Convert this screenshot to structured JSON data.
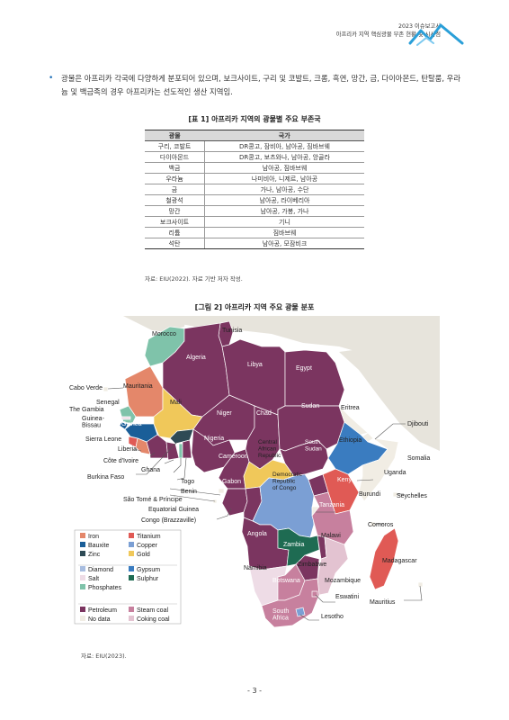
{
  "header": {
    "line1": "2023 이슈보고서",
    "line2": "아프리카 지역 핵심광물 부존 현황 및 시사점"
  },
  "bullet": {
    "text": "광물은 아프리카 각국에 다양하게 분포되어 있으며, 보크사이트, 구리 및 코발트, 크롬, 흑연, 망간, 금, 다이아몬드, 탄탈룸, 우라늄 및 백금족의 경우 아프리카는 선도적인 생산 지역임."
  },
  "table": {
    "title": "[표 1] 아프리카 지역의 광물별 주요 부존국",
    "headers": [
      "광물",
      "국가"
    ],
    "rows": [
      [
        "구리, 코발트",
        "DR콩고, 잠비아, 남아공, 짐바브웨"
      ],
      [
        "다이아몬드",
        "DR콩고, 보츠와나, 남아공, 앙골라"
      ],
      [
        "백금",
        "남아공, 짐바브웨"
      ],
      [
        "우라늄",
        "나미비아, 니제르, 남아공"
      ],
      [
        "금",
        "가나, 남아공, 수단"
      ],
      [
        "철광석",
        "남아공, 라이베리아"
      ],
      [
        "망간",
        "남아공, 가봉, 가나"
      ],
      [
        "보크사이트",
        "기니"
      ],
      [
        "리튬",
        "짐바브웨"
      ],
      [
        "석탄",
        "남아공, 모잠비크"
      ]
    ],
    "source": "자료: EIU(2022). 자료 기반 저자 작성."
  },
  "figure": {
    "title": "[그림 2] 아프리카 지역 주요 광물 분포",
    "source": "자료: EIU(2023).",
    "colors": {
      "Petroleum": "#7b3560",
      "Gold": "#f0c85a",
      "Iron": "#e4876a",
      "Copper": "#7b9fd4",
      "Diamond": "#a8bde0",
      "Phosphates": "#7fc3aa",
      "Sulphur": "#1e6b52",
      "Steam coal": "#c7809e",
      "Coking coal": "#e3c3d1",
      "Salt": "#eedce6",
      "Titanium": "#e05a55",
      "Bauxite": "#1a5e98",
      "Zinc": "#2e4a55",
      "Gypsum": "#3a7cc0",
      "No data": "#f1ede4",
      "Sea": "#ffffff",
      "Land": "#e7e4dc"
    },
    "countries": {
      "morocco": "Morocco",
      "tunisia": "Tunisia",
      "algeria": "Algeria",
      "libya": "Libya",
      "egypt": "Egypt",
      "mauritania": "Mauritania",
      "mali": "Mali",
      "niger": "Niger",
      "chad": "Chad",
      "sudan": "Sudan",
      "eritrea": "Eritrea",
      "djibouti": "Djibouti",
      "ethiopia": "Ethiopia",
      "somalia": "Somalia",
      "cabo_verde": "Cabo Verde",
      "senegal": "Senegal",
      "gambia": "The Gambia",
      "guinea_bissau": "Guinea-\nBissau",
      "guinea": "Guinea",
      "sierra_leone": "Sierra Leone",
      "liberia": "Liberia",
      "cote": "Côte d'Ivoire",
      "ghana": "Ghana",
      "burkina": "Burkina Faso",
      "togo": "Togo",
      "benin": "Benin",
      "nigeria": "Nigeria",
      "cameroon": "Cameroon",
      "car": "Central\nAfrican\nRepublic",
      "south_sudan": "South\nSudan",
      "uganda": "Uganda",
      "kenya": "Kenya",
      "burundi": "Burundi",
      "seychelles": "Seychelles",
      "stp": "São Tomé & Príncipe",
      "eq_guinea": "Equatorial Guinea",
      "congo": "Congo (Brazzaville)",
      "gabon": "Gabon",
      "drc": "Democratic\nRepublic\nof Congo",
      "tanzania": "Tanzania",
      "comoros": "Comoros",
      "angola": "Angola",
      "zambia": "Zambia",
      "malawi": "Malawi",
      "madagascar": "Madagascar",
      "namibia": "Namibia",
      "zimbabwe": "Zimbabwe",
      "mozambique": "Mozambique",
      "botswana": "Botswana",
      "eswatini": "Eswatini",
      "mauritius": "Mauritius",
      "south_africa": "South\nAfrica",
      "lesotho": "Lesotho"
    },
    "legend": [
      [
        "Iron",
        "Titanium"
      ],
      [
        "Bauxite",
        "Copper"
      ],
      [
        "Zinc",
        "Gold"
      ],
      [
        "Diamond",
        "Gypsum"
      ],
      [
        "Salt",
        "Sulphur"
      ],
      [
        "Phosphates",
        ""
      ],
      [
        "Petroleum",
        "Steam coal"
      ],
      [
        "No data",
        "Coking coal"
      ]
    ]
  },
  "page_number": "- 3 -"
}
